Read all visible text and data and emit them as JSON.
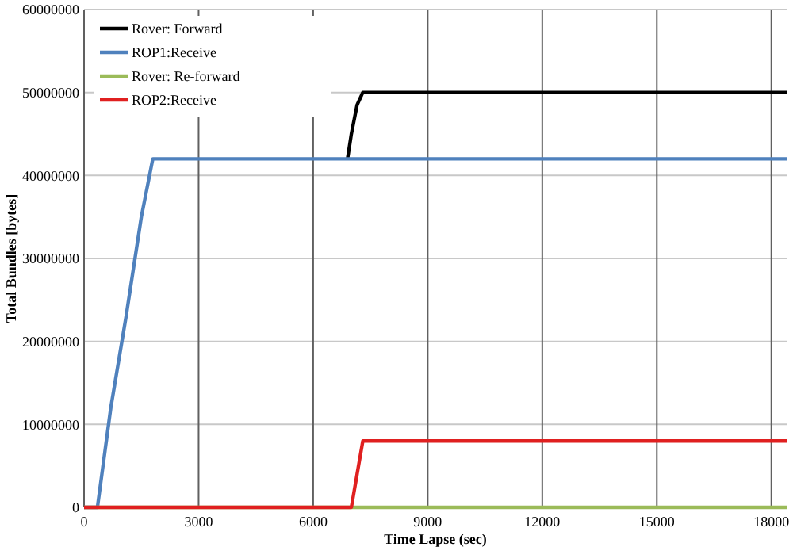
{
  "chart_data": {
    "type": "line",
    "xlabel": "Time Lapse (sec)",
    "ylabel": "Total Bundles [bytes]",
    "xlim": [
      0,
      18400
    ],
    "xticks": [
      0,
      3000,
      6000,
      9000,
      12000,
      15000,
      18000
    ],
    "ylim": [
      0,
      60000000
    ],
    "yticks": [
      0,
      10000000,
      20000000,
      30000000,
      40000000,
      50000000,
      60000000
    ],
    "grid": true,
    "legend": "top left",
    "line_style": "solid",
    "series": [
      {
        "name": "Rover: Forward",
        "color": "#000000",
        "x": [
          6900,
          7000,
          7150,
          7300,
          18400
        ],
        "values": [
          42000000,
          45000000,
          48500000,
          50000000,
          50000000
        ]
      },
      {
        "name": "ROP1:Receive",
        "color": "#4f81bd",
        "x": [
          0,
          350,
          700,
          1100,
          1500,
          1800,
          18400
        ],
        "values": [
          0,
          0,
          12000000,
          23000000,
          35000000,
          42000000,
          42000000
        ]
      },
      {
        "name": "Rover: Re-forward",
        "color": "#9bbb59",
        "x": [
          0,
          18400
        ],
        "values": [
          0,
          0
        ]
      },
      {
        "name": "ROP2:Receive",
        "color": "#e02020",
        "x": [
          0,
          7000,
          7150,
          7300,
          18400
        ],
        "values": [
          0,
          0,
          4000000,
          8000000,
          8000000
        ]
      }
    ]
  }
}
